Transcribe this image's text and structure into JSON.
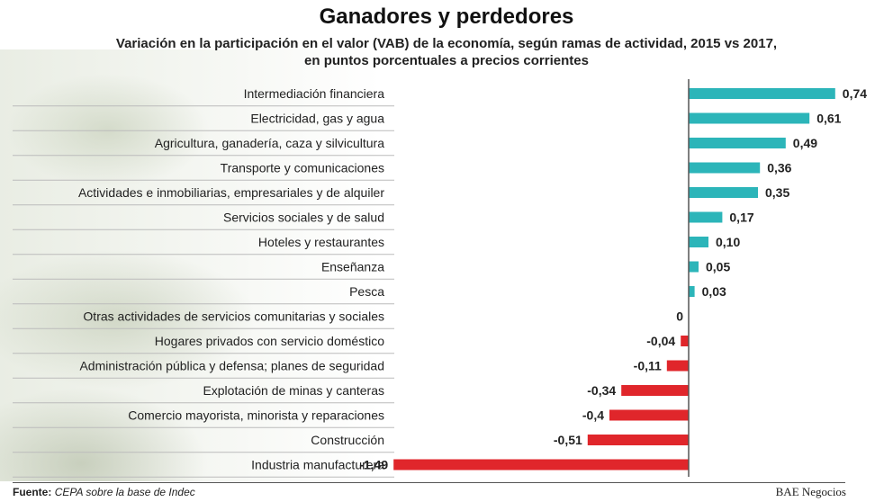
{
  "chart_data": {
    "type": "bar",
    "orientation": "horizontal",
    "title": "Ganadores y perdedores",
    "subtitle_line1": "Variación en la participación en el valor (VAB) de la economía, según ramas de actividad, 2015 vs 2017,",
    "subtitle_line2": "en puntos porcentuales a precios corrientes",
    "categories": [
      "Intermediación financiera",
      "Electricidad, gas y agua",
      "Agricultura, ganadería, caza y silvicultura",
      "Transporte y comunicaciones",
      "Actividades e inmobiliarias, empresariales y de alquiler",
      "Servicios sociales y de salud",
      "Hoteles y restaurantes",
      "Enseñanza",
      "Pesca",
      "Otras actividades de servicios comunitarias y sociales",
      "Hogares privados con servicio doméstico",
      "Administración pública y defensa; planes de seguridad",
      "Explotación de minas y canteras",
      "Comercio mayorista, minorista y reparaciones",
      "Construcción",
      "Industria manufacturera"
    ],
    "values": [
      0.74,
      0.61,
      0.49,
      0.36,
      0.35,
      0.17,
      0.1,
      0.05,
      0.03,
      0,
      -0.04,
      -0.11,
      -0.34,
      -0.4,
      -0.51,
      -1.49
    ],
    "value_labels": [
      "0,74",
      "0,61",
      "0,49",
      "0,36",
      "0,35",
      "0,17",
      "0,10",
      "0,05",
      "0,03",
      "0",
      "-0,04",
      "-0,11",
      "-0,34",
      "-0,4",
      "-0,51",
      "-1,49"
    ],
    "xlim": [
      -1.49,
      0.74
    ],
    "grid": false,
    "colors": {
      "positive": "#2cb5b9",
      "negative": "#e0262b",
      "axis": "#555555"
    }
  },
  "footer": {
    "source_label": "Fuente:",
    "source_text": "CEPA sobre la base de Indec",
    "brand": "BAE Negocios"
  }
}
